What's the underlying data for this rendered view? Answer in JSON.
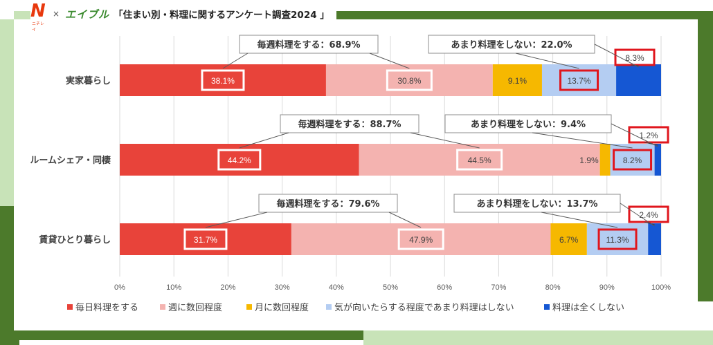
{
  "header": {
    "logo_n": "N",
    "logo_n_sub": "ニチレイ",
    "times": "×",
    "logo_e": "エイブル",
    "title": "「住まい別・料理に関するアンケート調査2024 」"
  },
  "colors": {
    "daily": "#e8433a",
    "weekly": "#f4b3b0",
    "monthly": "#f6b800",
    "rarely": "#b4cdf2",
    "never": "#1557d3",
    "highlight_red": "#e0161d",
    "highlight_white": "#ffffff"
  },
  "chart_data": {
    "type": "bar",
    "orientation": "horizontal",
    "stacked": true,
    "categories": [
      "実家暮らし",
      "ルームシェア・同棲",
      "賃貸ひとり暮らし"
    ],
    "series": [
      {
        "name": "毎日料理をする",
        "values": [
          38.1,
          44.2,
          31.7
        ],
        "labels": [
          "38.1%",
          "44.2%",
          "31.7%"
        ]
      },
      {
        "name": "週に数回程度",
        "values": [
          30.8,
          44.5,
          47.9
        ],
        "labels": [
          "30.8%",
          "44.5%",
          "47.9%"
        ]
      },
      {
        "name": "月に数回程度",
        "values": [
          9.1,
          1.9,
          6.7
        ],
        "labels": [
          "9.1%",
          "1.9%",
          "6.7%"
        ]
      },
      {
        "name": "気が向いたらする程度であまり料理はしない",
        "values": [
          13.7,
          8.2,
          11.3
        ],
        "labels": [
          "13.7%",
          "8.2%",
          "11.3%"
        ]
      },
      {
        "name": "料理は全くしない",
        "values": [
          8.3,
          1.2,
          2.4
        ],
        "labels": [
          "8.3%",
          "1.2%",
          "2.4%"
        ]
      }
    ],
    "xlim": [
      0,
      100
    ],
    "x_ticks": [
      "0%",
      "10%",
      "20%",
      "30%",
      "40%",
      "50%",
      "60%",
      "70%",
      "80%",
      "90%",
      "100%"
    ],
    "gridlines": true,
    "legend_position": "bottom",
    "annotations": [
      {
        "row": 0,
        "weekly_label": "毎週料理をする：68.9%",
        "rarely_label": "あまり料理をしない：22.0%"
      },
      {
        "row": 1,
        "weekly_label": "毎週料理をする：88.7%",
        "rarely_label": "あまり料理をしない：9.4%"
      },
      {
        "row": 2,
        "weekly_label": "毎週料理をする：79.6%",
        "rarely_label": "あまり料理をしない：13.7%"
      }
    ]
  }
}
